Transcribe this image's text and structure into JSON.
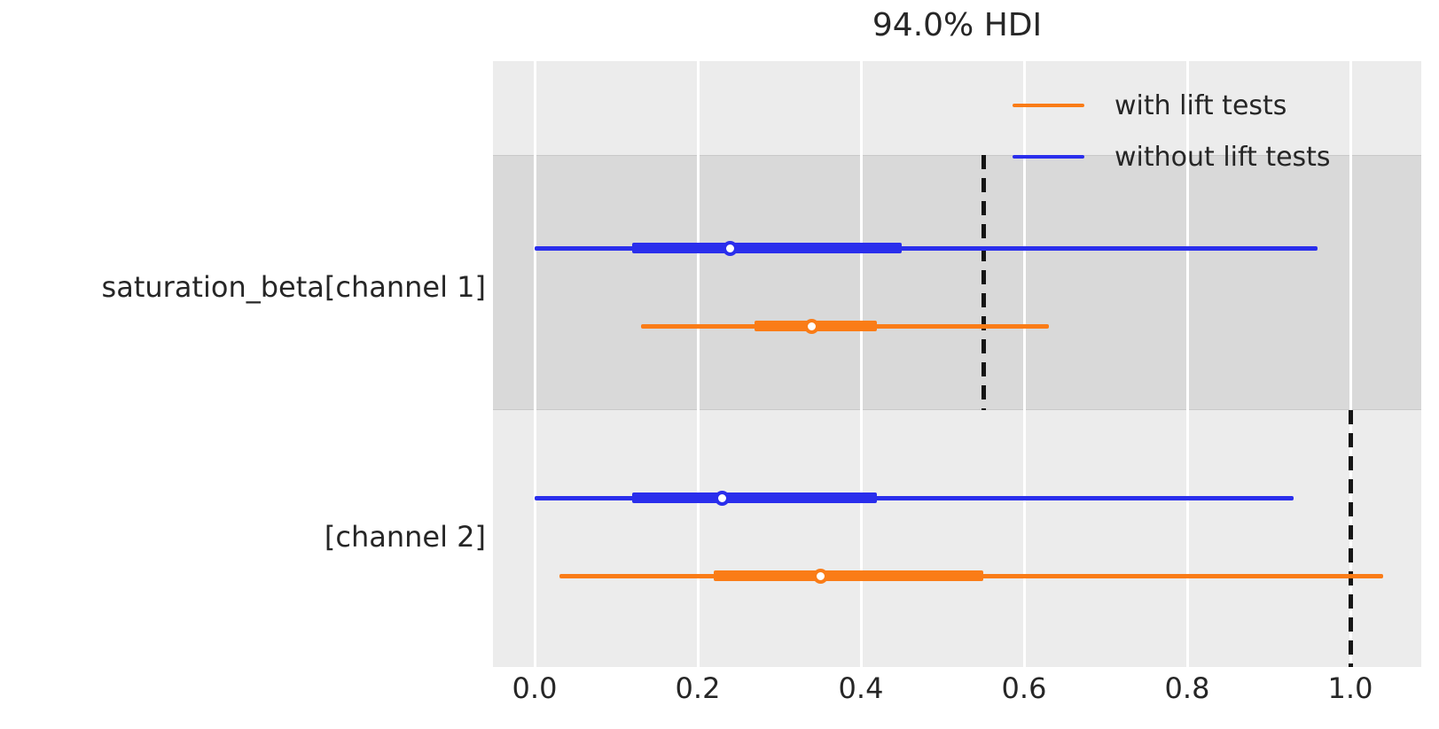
{
  "title": "94.0% HDI",
  "colors": {
    "with_lift": "#fa7c17",
    "without_lift": "#2a2eec",
    "axes_bg": "#ececec",
    "band_bg": "#d9d9d9",
    "gridline": "#ffffff",
    "reference_line": "#141414",
    "text": "#262626"
  },
  "legend": {
    "entries": [
      {
        "label": "with lift tests",
        "color": "#fa7c17"
      },
      {
        "label": "without lift tests",
        "color": "#2a2eec"
      }
    ]
  },
  "chart_data": {
    "type": "forest",
    "title": "94.0% HDI",
    "hdi_prob_label": "94.0% HDI",
    "xlabel": "",
    "ylabel": "",
    "xlim": [
      -0.05,
      1.09
    ],
    "x_ticks": [
      0.0,
      0.2,
      0.4,
      0.6,
      0.8,
      1.0
    ],
    "x_tick_labels": [
      "0.0",
      "0.2",
      "0.4",
      "0.6",
      "0.8",
      "1.0"
    ],
    "grid": "vertical-white-on-gray",
    "legend_position": "upper right",
    "variables": [
      {
        "label": "saturation_beta[channel 1]",
        "shaded": true,
        "reference_value": 0.55,
        "series": [
          {
            "name": "without lift tests",
            "color": "#2a2eec",
            "hdi_94": [
              0.0,
              0.96
            ],
            "hdi_thick": [
              0.12,
              0.45
            ],
            "median": 0.24
          },
          {
            "name": "with lift tests",
            "color": "#fa7c17",
            "hdi_94": [
              0.13,
              0.63
            ],
            "hdi_thick": [
              0.27,
              0.42
            ],
            "median": 0.34
          }
        ]
      },
      {
        "label": "[channel 2]",
        "shaded": false,
        "reference_value": 1.0,
        "series": [
          {
            "name": "without lift tests",
            "color": "#2a2eec",
            "hdi_94": [
              0.0,
              0.93
            ],
            "hdi_thick": [
              0.12,
              0.42
            ],
            "median": 0.23
          },
          {
            "name": "with lift tests",
            "color": "#fa7c17",
            "hdi_94": [
              0.03,
              1.04
            ],
            "hdi_thick": [
              0.22,
              0.55
            ],
            "median": 0.35
          }
        ]
      }
    ]
  }
}
